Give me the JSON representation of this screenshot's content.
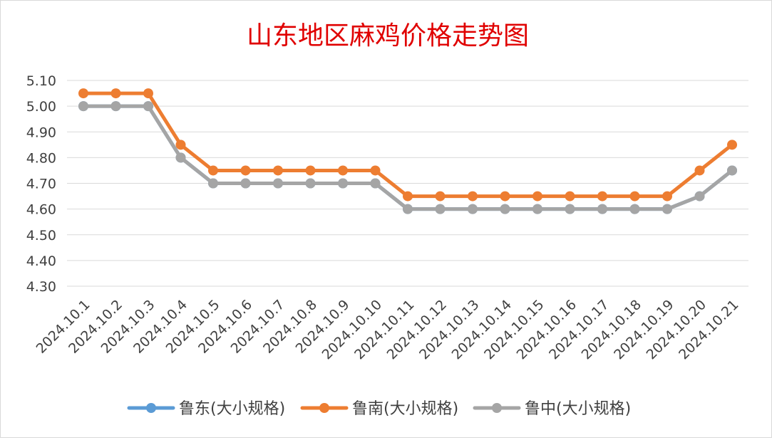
{
  "chart_data": {
    "type": "line",
    "title": "山东地区麻鸡价格走势图",
    "xlabel": "",
    "ylabel": "",
    "categories": [
      "2024.10.1",
      "2024.10.2",
      "2024.10.3",
      "2024.10.4",
      "2024.10.5",
      "2024.10.6",
      "2024.10.7",
      "2024.10.8",
      "2024.10.9",
      "2024.10.10",
      "2024.10.11",
      "2024.10.12",
      "2024.10.13",
      "2024.10.14",
      "2024.10.15",
      "2024.10.16",
      "2024.10.17",
      "2024.10.18",
      "2024.10.19",
      "2024.10.20",
      "2024.10.21"
    ],
    "ylim": [
      4.3,
      5.1
    ],
    "yticks": [
      "5.10",
      "5.00",
      "4.90",
      "4.80",
      "4.70",
      "4.60",
      "4.50",
      "4.40",
      "4.30"
    ],
    "grid": true,
    "legend_position": "bottom",
    "series": [
      {
        "name": "鲁东(大小规格)",
        "color": "#5b9bd5",
        "values": [
          5.0,
          5.0,
          5.0,
          4.8,
          4.7,
          4.7,
          4.7,
          4.7,
          4.7,
          4.7,
          4.6,
          4.6,
          4.6,
          4.6,
          4.6,
          4.6,
          4.6,
          4.6,
          4.6,
          4.65,
          4.75
        ]
      },
      {
        "name": "鲁南(大小规格)",
        "color": "#ed7d31",
        "values": [
          5.05,
          5.05,
          5.05,
          4.85,
          4.75,
          4.75,
          4.75,
          4.75,
          4.75,
          4.75,
          4.65,
          4.65,
          4.65,
          4.65,
          4.65,
          4.65,
          4.65,
          4.65,
          4.65,
          4.75,
          4.85
        ]
      },
      {
        "name": "鲁中(大小规格)",
        "color": "#a5a5a5",
        "values": [
          5.0,
          5.0,
          5.0,
          4.8,
          4.7,
          4.7,
          4.7,
          4.7,
          4.7,
          4.7,
          4.6,
          4.6,
          4.6,
          4.6,
          4.6,
          4.6,
          4.6,
          4.6,
          4.6,
          4.65,
          4.75
        ]
      }
    ]
  }
}
